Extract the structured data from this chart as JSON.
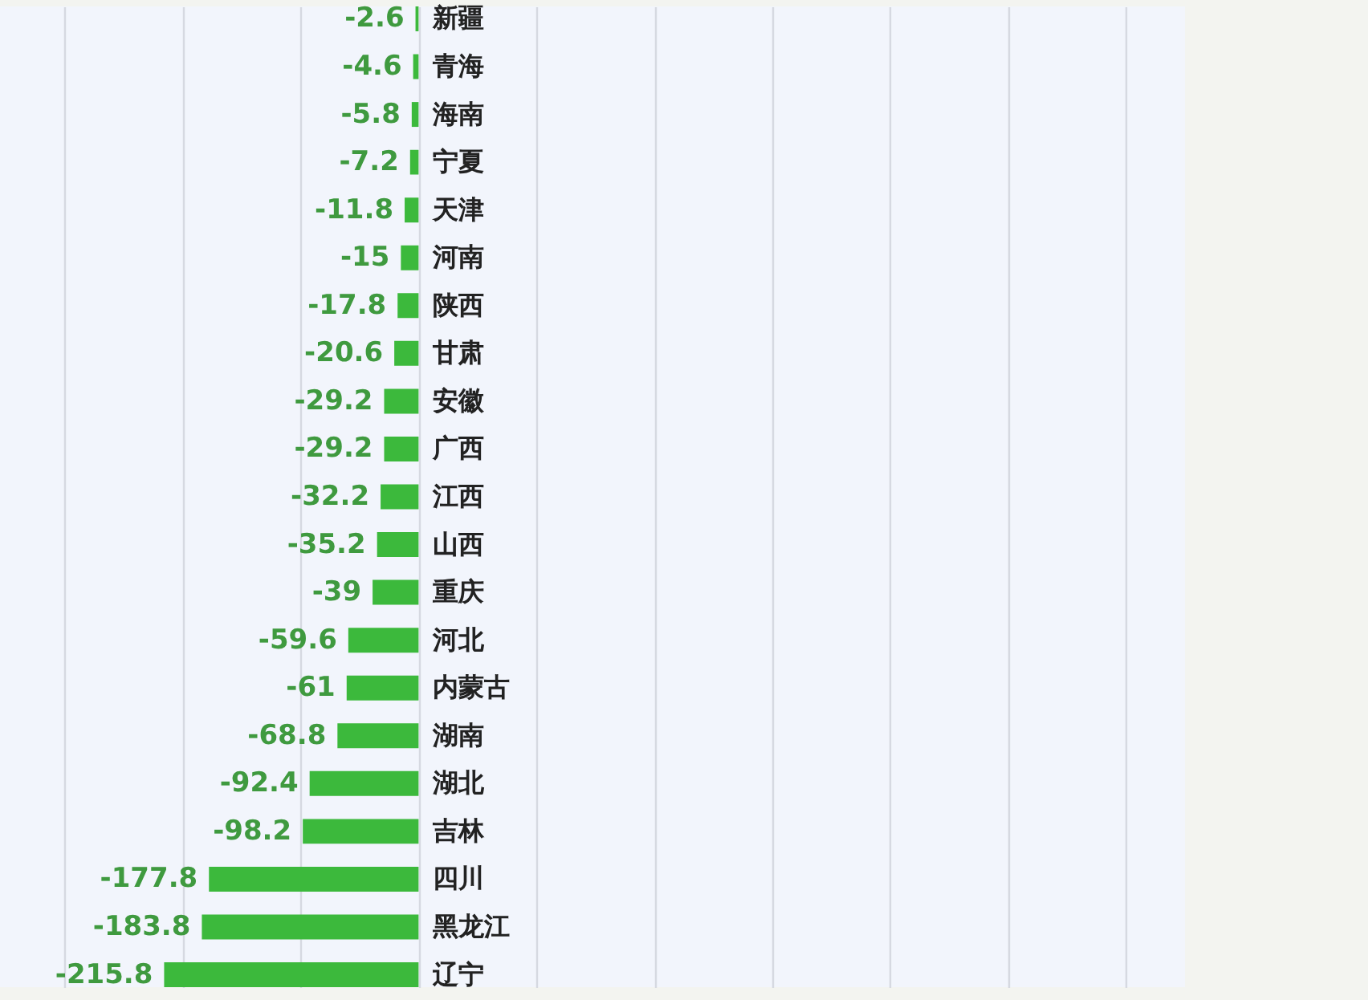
{
  "chart_data": {
    "type": "bar",
    "orientation": "horizontal",
    "categories": [
      "新疆",
      "青海",
      "海南",
      "宁夏",
      "天津",
      "河南",
      "陕西",
      "甘肃",
      "安徽",
      "广西",
      "江西",
      "山西",
      "重庆",
      "河北",
      "内蒙古",
      "湖南",
      "湖北",
      "吉林",
      "四川",
      "黑龙江",
      "辽宁"
    ],
    "values": [
      -2.6,
      -4.6,
      -5.8,
      -7.2,
      -11.8,
      -15,
      -17.8,
      -20.6,
      -29.2,
      -29.2,
      -32.2,
      -35.2,
      -39,
      -59.6,
      -61,
      -68.8,
      -92.4,
      -98.2,
      -177.8,
      -183.8,
      -215.8
    ],
    "color": "#3cb93c",
    "data_labels": true,
    "xlim": [
      -355,
      650
    ],
    "xticks": [
      {
        "value": -300,
        "label": null
      },
      {
        "value": -200,
        "label": null
      },
      {
        "value": -100,
        "label": null
      },
      {
        "value": 0,
        "label": null
      },
      {
        "value": 100,
        "label": null
      },
      {
        "value": 200,
        "label": null
      },
      {
        "value": 300,
        "label": null
      },
      {
        "value": 400,
        "label": null
      },
      {
        "value": 500,
        "label": null
      },
      {
        "value": 600,
        "label": null
      }
    ],
    "grid": "x",
    "tick_labels": "y"
  }
}
